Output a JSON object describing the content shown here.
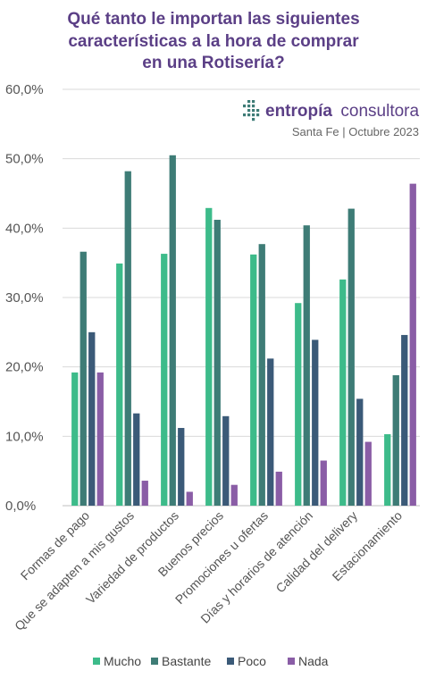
{
  "chart_data": {
    "type": "bar",
    "title": [
      "Qué tanto le importan las siguientes",
      "características a la hora de comprar",
      "en una Rotisería?"
    ],
    "categories": [
      "Formas de pago",
      "Que se adapten a mis gustos",
      "Variedad de productos",
      "Buenos precios",
      "Promociones u ofertas",
      "Días y horarios de atención",
      "Calidad del delivery",
      "Estacionamiento"
    ],
    "series": [
      {
        "name": "Mucho",
        "color": "#3dbb8a",
        "values": [
          19.2,
          34.9,
          36.3,
          42.9,
          36.2,
          29.2,
          32.6,
          10.3
        ]
      },
      {
        "name": "Bastante",
        "color": "#3e7c76",
        "values": [
          36.6,
          48.2,
          50.5,
          41.2,
          37.7,
          40.4,
          42.8,
          18.8
        ]
      },
      {
        "name": "Poco",
        "color": "#3b5a78",
        "values": [
          25.0,
          13.3,
          11.2,
          12.9,
          21.2,
          23.9,
          15.4,
          24.6
        ]
      },
      {
        "name": "Nada",
        "color": "#8a5da6",
        "values": [
          19.2,
          3.6,
          2.0,
          3.0,
          4.9,
          6.5,
          9.2,
          46.4
        ]
      }
    ],
    "ylim": [
      0,
      60
    ],
    "yticks": [
      "0,0%",
      "10,0%",
      "20,0%",
      "30,0%",
      "40,0%",
      "50,0%",
      "60,0%"
    ],
    "grid": true,
    "legend_position": "bottom"
  },
  "branding": {
    "name_bold": "entropía",
    "name_light": "consultora",
    "subtitle": "Santa Fe | Octubre 2023",
    "logo_icon": "dotted-arrow-icon",
    "logo_color": "#3e7c76"
  },
  "colors": {
    "title": "#5b3f86",
    "grid": "#d9d9d9",
    "axis": "#bfbfbf"
  }
}
